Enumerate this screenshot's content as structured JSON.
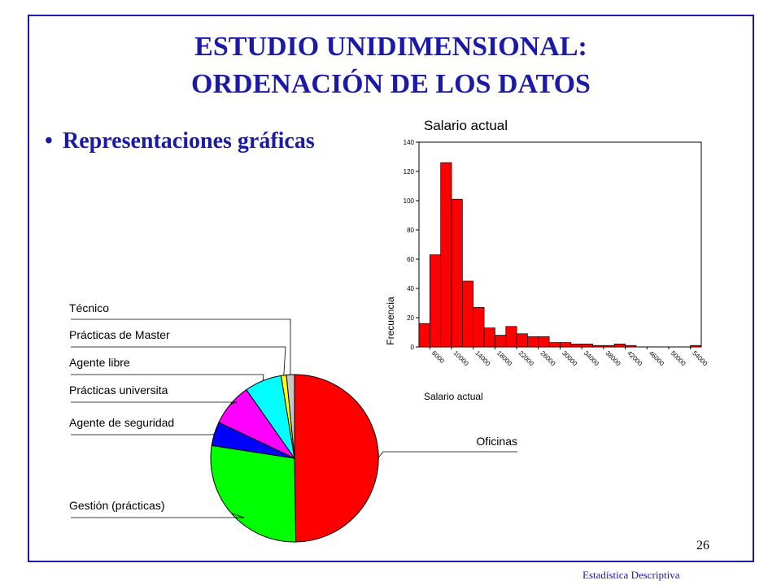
{
  "slide": {
    "title_line1": "ESTUDIO UNIDIMENSIONAL:",
    "title_line2": "ORDENACIÓN DE LOS DATOS",
    "bullet": "Representaciones gráficas",
    "bullet_symbol": "•",
    "page_number": "26",
    "footer": "Estadística Descriptiva",
    "colors": {
      "title": "#1a1aa6",
      "frame": "#1a1aa6"
    }
  },
  "chart_data": [
    {
      "type": "bar",
      "title": "Salario actual",
      "xlabel": "Salario actual",
      "ylabel": "Frecuencia",
      "ylim": [
        0,
        140
      ],
      "yticks": [
        "0",
        "20",
        "40",
        "60",
        "80",
        "100",
        "120",
        "140"
      ],
      "xticks": [
        "6000",
        "10000",
        "14000",
        "18000",
        "22000",
        "26000",
        "30000",
        "34000",
        "38000",
        "42000",
        "46000",
        "50000",
        "54000"
      ],
      "values": [
        16,
        63,
        126,
        101,
        45,
        27,
        13,
        8,
        14,
        9,
        7,
        7,
        3,
        3,
        2,
        2,
        1,
        1,
        2,
        1,
        0,
        0,
        0,
        0,
        0,
        1
      ],
      "bar_color": "#ff0000",
      "grid": false
    },
    {
      "type": "pie",
      "labels": [
        "Oficinas",
        "Gestión (prácticas)",
        "Agente de seguridad",
        "Prácticas universita",
        "Agente libre",
        "Prácticas de Master",
        "Técnico"
      ],
      "values": [
        48.5,
        27.0,
        4.5,
        8.0,
        7.0,
        1.0,
        1.5
      ],
      "colors": [
        "#ff0000",
        "#00ff00",
        "#0000ff",
        "#ff00ff",
        "#00ffff",
        "#ffff00",
        "#c8c8c8"
      ]
    }
  ]
}
